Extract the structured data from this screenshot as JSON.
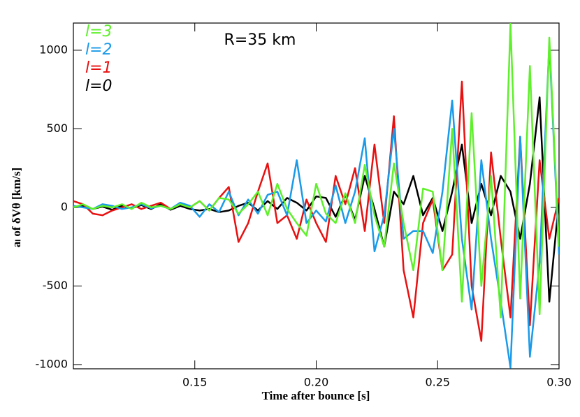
{
  "chart_data": {
    "type": "line",
    "xlabel": "Time after bounce [s]",
    "ylabel": "aₗ of δVθ [km/s]",
    "annotation": "R=35 km",
    "xlim": [
      0.1,
      0.3
    ],
    "ylim": [
      -1027,
      1173
    ],
    "xticks": [
      0.15,
      {
        "value": 0.2,
        "label": "0.20"
      },
      0.25,
      {
        "value": 0.3,
        "label": "0.30"
      }
    ],
    "yticks": [
      1000,
      500,
      0,
      -500,
      -1000
    ],
    "legend": "top-left",
    "x": [
      0.1,
      0.104,
      0.108,
      0.112,
      0.116,
      0.12,
      0.124,
      0.128,
      0.132,
      0.136,
      0.14,
      0.144,
      0.148,
      0.152,
      0.156,
      0.16,
      0.164,
      0.168,
      0.172,
      0.176,
      0.18,
      0.184,
      0.188,
      0.192,
      0.196,
      0.2,
      0.204,
      0.208,
      0.212,
      0.216,
      0.22,
      0.224,
      0.228,
      0.232,
      0.236,
      0.24,
      0.244,
      0.248,
      0.252,
      0.256,
      0.26,
      0.264,
      0.268,
      0.272,
      0.276,
      0.28,
      0.284,
      0.288,
      0.292,
      0.296,
      0.3
    ],
    "series": [
      {
        "name": "l=3",
        "color": "#5ef02a",
        "values": [
          0,
          20,
          -10,
          10,
          0,
          20,
          -10,
          30,
          0,
          10,
          -10,
          20,
          0,
          40,
          -20,
          60,
          50,
          -40,
          20,
          100,
          -50,
          150,
          -10,
          -100,
          -180,
          150,
          -40,
          -100,
          90,
          -100,
          270,
          -50,
          -250,
          280,
          -100,
          -400,
          120,
          100,
          -400,
          500,
          -600,
          600,
          -500,
          200,
          -700,
          1170,
          -580,
          900,
          -680,
          1080,
          -250
        ]
      },
      {
        "name": "l=2",
        "color": "#1a9ae8",
        "values": [
          10,
          0,
          -10,
          20,
          10,
          -10,
          0,
          20,
          -5,
          10,
          -10,
          30,
          10,
          -60,
          20,
          -30,
          100,
          -50,
          50,
          -40,
          80,
          100,
          -50,
          300,
          -100,
          -20,
          -90,
          140,
          -100,
          100,
          440,
          -280,
          -50,
          500,
          -200,
          -150,
          -150,
          -290,
          100,
          680,
          -200,
          -650,
          300,
          -200,
          -600,
          -1020,
          450,
          -950,
          -350,
          1040,
          -300
        ]
      },
      {
        "name": "l=1",
        "color": "#e81010",
        "values": [
          40,
          20,
          -40,
          -50,
          -20,
          0,
          20,
          -10,
          10,
          30,
          -10,
          20,
          0,
          40,
          -20,
          60,
          130,
          -220,
          -100,
          100,
          280,
          -100,
          -50,
          -200,
          50,
          -100,
          -220,
          200,
          20,
          250,
          -150,
          400,
          -100,
          580,
          -400,
          -700,
          -100,
          50,
          -400,
          -300,
          800,
          -500,
          -850,
          350,
          -200,
          -700,
          450,
          -750,
          300,
          -200,
          60
        ]
      },
      {
        "name": "l=0",
        "color": "#000000",
        "values": [
          0,
          10,
          -10,
          5,
          -15,
          10,
          -5,
          15,
          -10,
          20,
          -15,
          10,
          -10,
          -20,
          -10,
          -30,
          -20,
          10,
          30,
          -20,
          40,
          -10,
          60,
          30,
          -20,
          70,
          60,
          -60,
          80,
          -80,
          200,
          -10,
          -250,
          100,
          20,
          200,
          -50,
          60,
          -150,
          100,
          400,
          -100,
          150,
          -50,
          200,
          100,
          -200,
          150,
          700,
          -600,
          50
        ]
      }
    ]
  }
}
